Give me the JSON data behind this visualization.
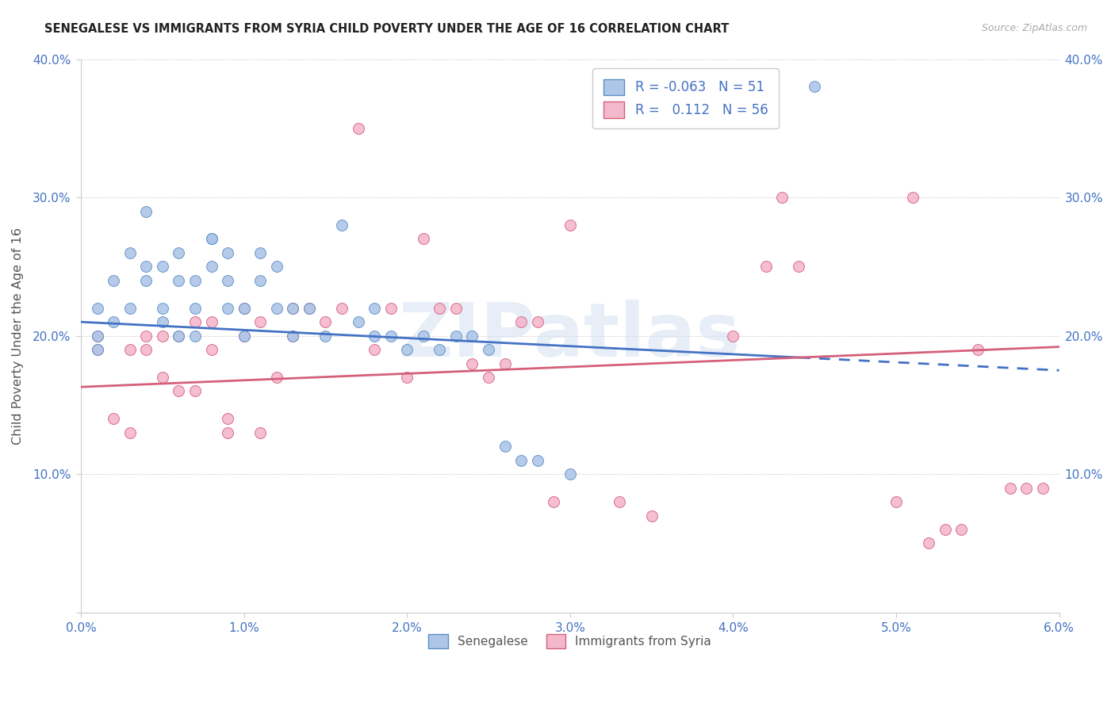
{
  "title": "SENEGALESE VS IMMIGRANTS FROM SYRIA CHILD POVERTY UNDER THE AGE OF 16 CORRELATION CHART",
  "source": "Source: ZipAtlas.com",
  "ylabel": "Child Poverty Under the Age of 16",
  "xlim": [
    0.0,
    0.06
  ],
  "ylim": [
    0.0,
    0.4
  ],
  "xticks": [
    0.0,
    0.01,
    0.02,
    0.03,
    0.04,
    0.05,
    0.06
  ],
  "yticks": [
    0.0,
    0.1,
    0.2,
    0.3,
    0.4
  ],
  "xtick_labels": [
    "0.0%",
    "1.0%",
    "2.0%",
    "3.0%",
    "4.0%",
    "5.0%",
    "6.0%"
  ],
  "ytick_labels": [
    "",
    "10.0%",
    "20.0%",
    "30.0%",
    "40.0%"
  ],
  "senegalese_color": "#aec6e8",
  "senegalese_edge": "#5b8ec4",
  "syria_color": "#f4b8cc",
  "syria_edge": "#d4607a",
  "line_blue_color": "#4472c4",
  "line_pink_color": "#d4607a",
  "tick_color": "#4472c4",
  "legend_blue_label": "Senegalese",
  "legend_pink_label": "Immigrants from Syria",
  "R_blue": -0.063,
  "N_blue": 51,
  "R_pink": 0.112,
  "N_pink": 56,
  "watermark": "ZIPatlas",
  "senegalese_x": [
    0.001,
    0.001,
    0.001,
    0.002,
    0.002,
    0.003,
    0.003,
    0.004,
    0.004,
    0.004,
    0.005,
    0.005,
    0.005,
    0.006,
    0.006,
    0.006,
    0.007,
    0.007,
    0.007,
    0.008,
    0.008,
    0.008,
    0.009,
    0.009,
    0.009,
    0.01,
    0.01,
    0.011,
    0.011,
    0.012,
    0.012,
    0.013,
    0.013,
    0.014,
    0.015,
    0.016,
    0.017,
    0.018,
    0.018,
    0.019,
    0.02,
    0.021,
    0.022,
    0.023,
    0.024,
    0.025,
    0.026,
    0.027,
    0.028,
    0.03,
    0.045
  ],
  "senegalese_y": [
    0.2,
    0.19,
    0.22,
    0.21,
    0.24,
    0.26,
    0.22,
    0.25,
    0.29,
    0.24,
    0.22,
    0.25,
    0.21,
    0.24,
    0.26,
    0.2,
    0.22,
    0.24,
    0.2,
    0.27,
    0.27,
    0.25,
    0.24,
    0.22,
    0.26,
    0.2,
    0.22,
    0.24,
    0.26,
    0.22,
    0.25,
    0.22,
    0.2,
    0.22,
    0.2,
    0.28,
    0.21,
    0.2,
    0.22,
    0.2,
    0.19,
    0.2,
    0.19,
    0.2,
    0.2,
    0.19,
    0.12,
    0.11,
    0.11,
    0.1,
    0.38
  ],
  "syria_x": [
    0.001,
    0.001,
    0.002,
    0.003,
    0.003,
    0.004,
    0.004,
    0.005,
    0.005,
    0.006,
    0.006,
    0.007,
    0.007,
    0.008,
    0.008,
    0.009,
    0.009,
    0.01,
    0.01,
    0.011,
    0.011,
    0.012,
    0.013,
    0.013,
    0.014,
    0.015,
    0.016,
    0.017,
    0.018,
    0.019,
    0.02,
    0.021,
    0.022,
    0.023,
    0.024,
    0.025,
    0.026,
    0.027,
    0.028,
    0.029,
    0.03,
    0.033,
    0.035,
    0.04,
    0.042,
    0.043,
    0.044,
    0.05,
    0.051,
    0.052,
    0.053,
    0.054,
    0.055,
    0.057,
    0.058,
    0.059
  ],
  "syria_y": [
    0.19,
    0.2,
    0.14,
    0.13,
    0.19,
    0.2,
    0.19,
    0.17,
    0.2,
    0.16,
    0.2,
    0.16,
    0.21,
    0.19,
    0.21,
    0.13,
    0.14,
    0.2,
    0.22,
    0.13,
    0.21,
    0.17,
    0.22,
    0.2,
    0.22,
    0.21,
    0.22,
    0.35,
    0.19,
    0.22,
    0.17,
    0.27,
    0.22,
    0.22,
    0.18,
    0.17,
    0.18,
    0.21,
    0.21,
    0.08,
    0.28,
    0.08,
    0.07,
    0.2,
    0.25,
    0.3,
    0.25,
    0.08,
    0.3,
    0.05,
    0.06,
    0.06,
    0.19,
    0.09,
    0.09,
    0.09
  ],
  "blue_line_x0": 0.0,
  "blue_line_y0": 0.21,
  "blue_line_x1": 0.06,
  "blue_line_y1": 0.175,
  "pink_line_x0": 0.0,
  "pink_line_y0": 0.163,
  "pink_line_x1": 0.06,
  "pink_line_y1": 0.192
}
